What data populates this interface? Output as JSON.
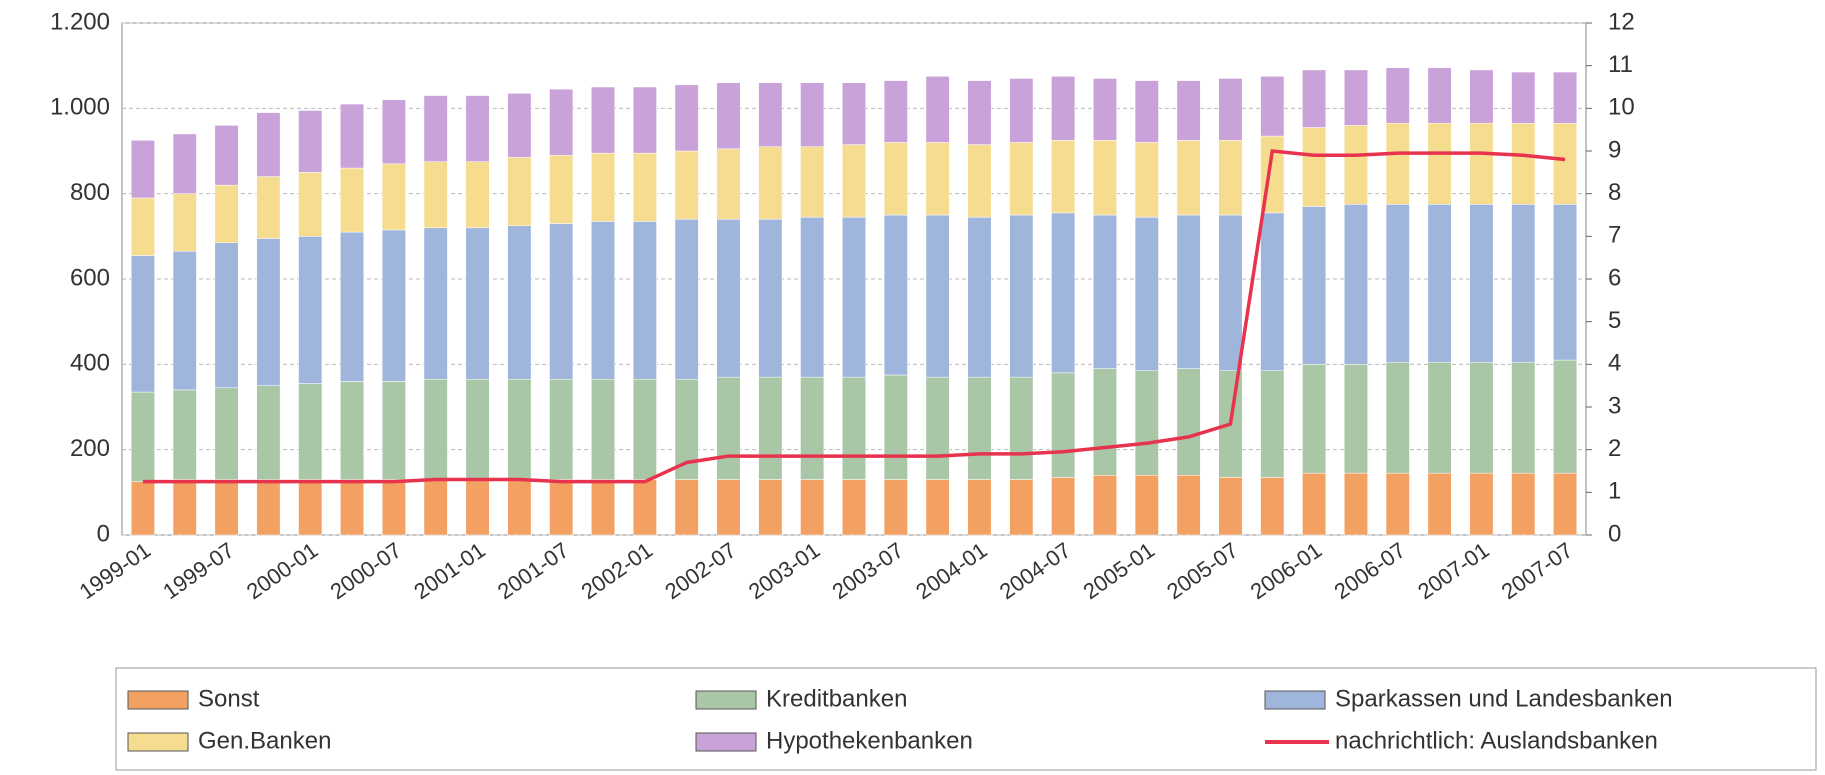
{
  "chart_data": {
    "type": "bar",
    "stacked": true,
    "categories": [
      "1999-01",
      null,
      "1999-07",
      null,
      "2000-01",
      null,
      "2000-07",
      null,
      "2001-01",
      null,
      "2001-07",
      null,
      "2002-01",
      null,
      "2002-07",
      null,
      "2003-01",
      null,
      "2003-07",
      null,
      "2004-01",
      null,
      "2004-07",
      null,
      "2005-01",
      null,
      "2005-07",
      null,
      "2006-01",
      null,
      "2006-07",
      null,
      "2007-01",
      null,
      "2007-07"
    ],
    "series": [
      {
        "name": "Sonst",
        "color": "#f2a162",
        "values": [
          125,
          130,
          130,
          130,
          130,
          130,
          130,
          130,
          130,
          130,
          130,
          130,
          130,
          130,
          130,
          130,
          130,
          130,
          130,
          130,
          130,
          130,
          135,
          140,
          140,
          140,
          135,
          135,
          145,
          145,
          145,
          145,
          145,
          145,
          145
        ]
      },
      {
        "name": "Kreditbanken",
        "color": "#a9c6a6",
        "values": [
          210,
          210,
          215,
          220,
          225,
          230,
          230,
          235,
          235,
          235,
          235,
          235,
          235,
          235,
          240,
          240,
          240,
          240,
          245,
          240,
          240,
          240,
          245,
          250,
          245,
          250,
          250,
          250,
          255,
          255,
          260,
          260,
          260,
          260,
          265
        ]
      },
      {
        "name": "Sparkassen und Landesbanken",
        "color": "#9fb5dc",
        "values": [
          320,
          325,
          340,
          345,
          345,
          350,
          355,
          355,
          355,
          360,
          365,
          370,
          370,
          375,
          370,
          370,
          375,
          375,
          375,
          380,
          375,
          380,
          375,
          360,
          360,
          360,
          365,
          370,
          370,
          375,
          370,
          370,
          370,
          370,
          365
        ]
      },
      {
        "name": "Gen.Banken",
        "color": "#f6dc8e",
        "values": [
          135,
          135,
          135,
          145,
          150,
          150,
          155,
          155,
          155,
          160,
          160,
          160,
          160,
          160,
          165,
          170,
          165,
          170,
          170,
          170,
          170,
          170,
          170,
          175,
          175,
          175,
          175,
          180,
          185,
          185,
          190,
          190,
          190,
          190,
          190
        ]
      },
      {
        "name": "Hypothekenbanken",
        "color": "#c9a2d9",
        "values": [
          135,
          140,
          140,
          150,
          145,
          150,
          150,
          155,
          155,
          150,
          155,
          155,
          155,
          155,
          155,
          150,
          150,
          145,
          145,
          155,
          150,
          150,
          150,
          145,
          145,
          140,
          145,
          140,
          135,
          130,
          130,
          130,
          125,
          120,
          120
        ]
      },
      {
        "name": "nachrichtlich: Auslandsbanken",
        "color": "#e8334f",
        "type": "line",
        "axis": "y2",
        "values": [
          1.25,
          1.25,
          1.25,
          1.25,
          1.25,
          1.25,
          1.25,
          1.3,
          1.3,
          1.3,
          1.25,
          1.25,
          1.25,
          1.7,
          1.85,
          1.85,
          1.85,
          1.85,
          1.85,
          1.85,
          1.9,
          1.9,
          1.95,
          2.05,
          2.15,
          2.3,
          2.6,
          9.0,
          8.9,
          8.9,
          8.95,
          8.95,
          8.95,
          8.9,
          8.8
        ]
      }
    ],
    "ylim": [
      0,
      1200
    ],
    "yticks": [
      0,
      200,
      400,
      600,
      800,
      {
        "value": 1000,
        "label": "1.000"
      },
      {
        "value": 1200,
        "label": "1.200"
      }
    ],
    "y2lim": [
      0,
      12
    ],
    "y2ticks": [
      0,
      1,
      2,
      3,
      4,
      5,
      6,
      7,
      8,
      9,
      10,
      11,
      12
    ],
    "grid": true
  }
}
